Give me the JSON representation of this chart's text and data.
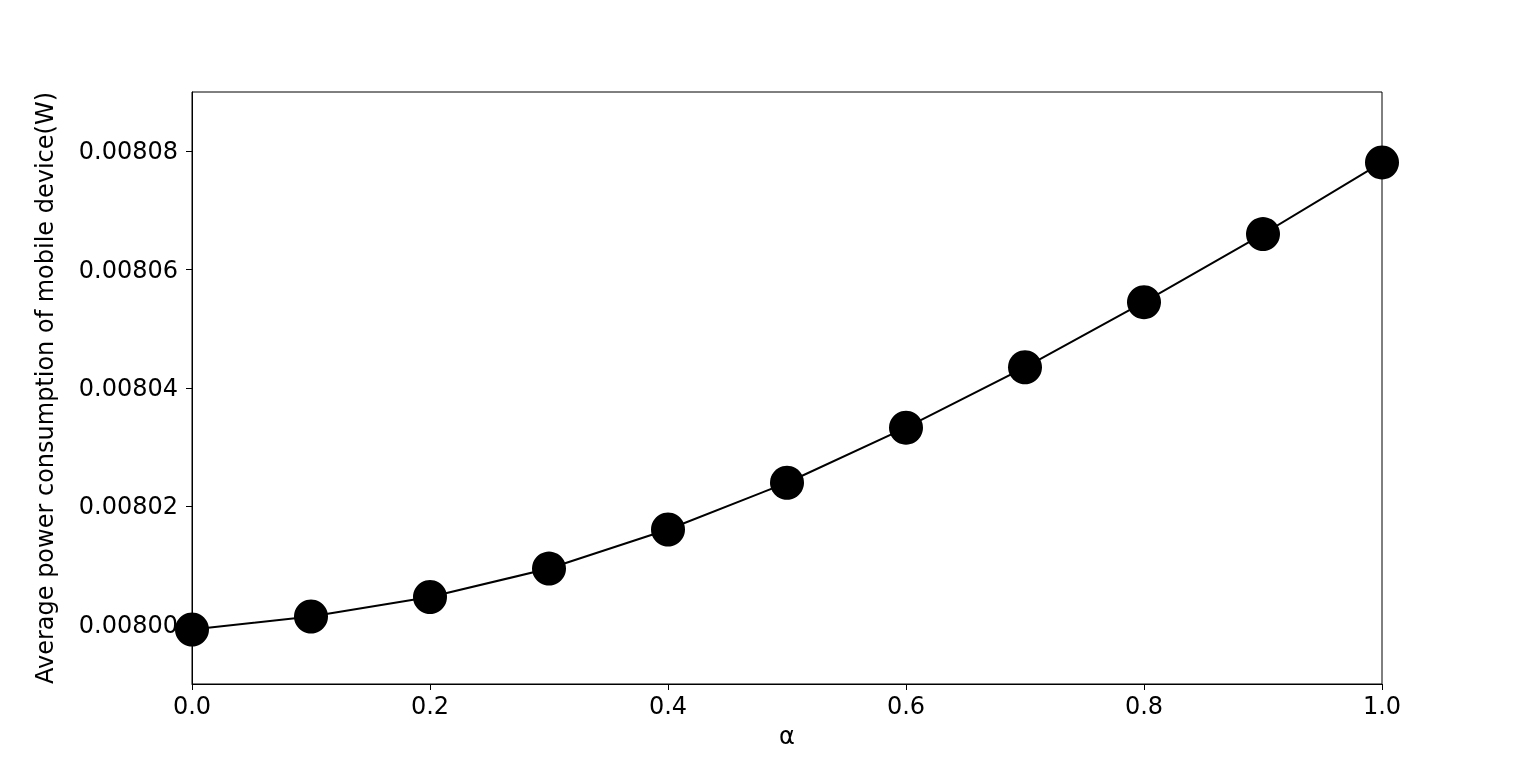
{
  "chart_data": {
    "type": "line",
    "xlabel": "α",
    "ylabel": "Average power consumption of mobile device(W)",
    "x": [
      0.0,
      0.1,
      0.2,
      0.3,
      0.4,
      0.5,
      0.6,
      0.7,
      0.8,
      0.9,
      1.0
    ],
    "series": [
      {
        "color": "#000000",
        "values": [
          0.0079992,
          0.0080014,
          0.0080047,
          0.0080095,
          0.0080161,
          0.008024,
          0.0080333,
          0.0080435,
          0.0080545,
          0.008066,
          0.0080781
        ]
      }
    ],
    "xlim": [
      0,
      1
    ],
    "xticks": [
      {
        "value": 0,
        "label": "0.0"
      },
      {
        "value": 0.2,
        "label": "0.2"
      },
      {
        "value": 0.4,
        "label": "0.4"
      },
      {
        "value": 0.6,
        "label": "0.6"
      },
      {
        "value": 0.8,
        "label": "0.8"
      },
      {
        "value": 1,
        "label": "1.0"
      }
    ],
    "ylim": [
      0.00799,
      0.00809
    ],
    "yticks": [
      {
        "value": 0.008,
        "label": "0.00800"
      },
      {
        "value": 0.00802,
        "label": "0.00802"
      },
      {
        "value": 0.00804,
        "label": "0.00804"
      },
      {
        "value": 0.00806,
        "label": "0.00806"
      },
      {
        "value": 0.00808,
        "label": "0.00808"
      }
    ],
    "grid": false,
    "marker": "circle",
    "line_style": "solid"
  }
}
